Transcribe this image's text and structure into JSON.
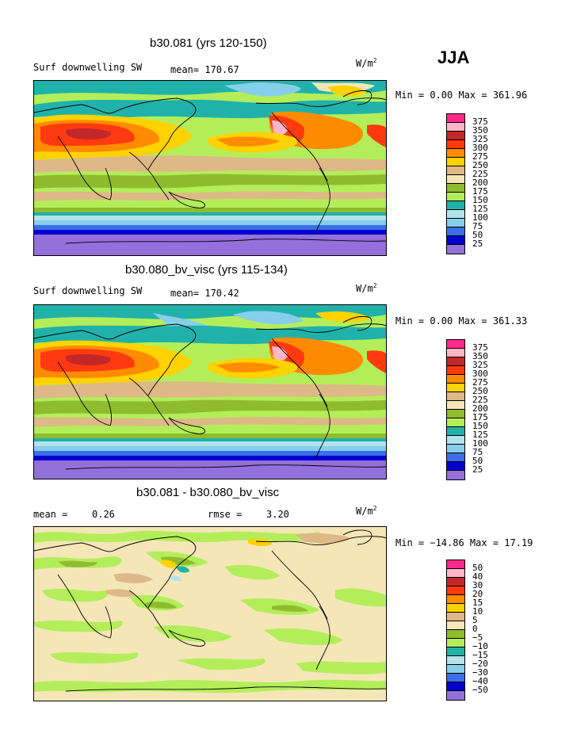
{
  "season": "JJA",
  "units_base": "W/m",
  "units_exp": "2",
  "panels": [
    {
      "title": "b30.081 (yrs 120-150)",
      "variable": "Surf downwelling SW",
      "mean": "mean= 170.67",
      "minmax": "Min =    0.00 Max = 361.96",
      "levels": [
        "375",
        "350",
        "325",
        "300",
        "275",
        "250",
        "225",
        "200",
        "175",
        "150",
        "125",
        "100",
        "75",
        "50",
        "25"
      ]
    },
    {
      "title": "b30.080_bv_visc (yrs 115-134)",
      "variable": "Surf downwelling SW",
      "mean": "mean= 170.42",
      "minmax": "Min =    0.00 Max = 361.33",
      "levels": [
        "375",
        "350",
        "325",
        "300",
        "275",
        "250",
        "225",
        "200",
        "175",
        "150",
        "125",
        "100",
        "75",
        "50",
        "25"
      ]
    },
    {
      "title": "b30.081 - b30.080_bv_visc",
      "mean_label": "mean =",
      "mean_value": "0.26",
      "rmse_label": "rmse =",
      "rmse_value": "3.20",
      "minmax": "Min = −14.86 Max =  17.19",
      "levels": [
        "50",
        "40",
        "30",
        "20",
        "15",
        "10",
        "5",
        "0",
        "−5",
        "−10",
        "−15",
        "−20",
        "−30",
        "−40",
        "−50"
      ]
    }
  ],
  "colorbar_colors": [
    "#ff2a8a",
    "#ffb6c8",
    "#c3272a",
    "#ff3a10",
    "#ff8c00",
    "#ffd200",
    "#deb887",
    "#f5e6b8",
    "#8fbc2f",
    "#b3ee5a",
    "#20b2aa",
    "#b4e2ec",
    "#87ceeb",
    "#3b6ee8",
    "#0000cd",
    "#9370db"
  ]
}
